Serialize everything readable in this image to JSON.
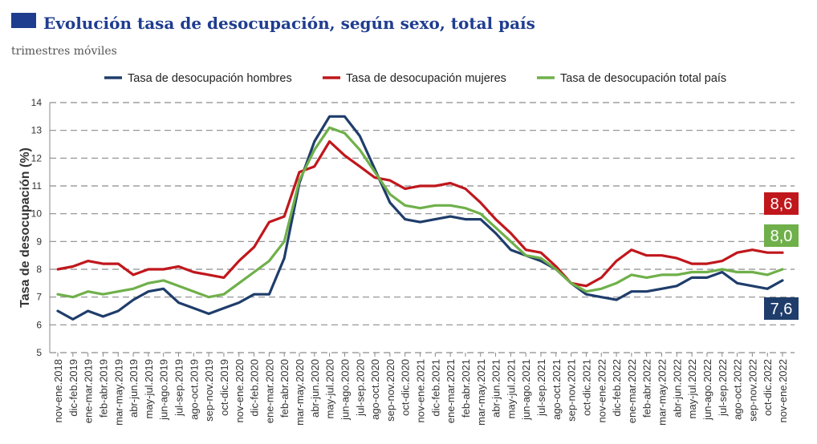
{
  "header": {
    "title": "Evolución tasa de desocupación, según sexo, total país",
    "subtitle": "trimestres móviles"
  },
  "chart_data": {
    "type": "line",
    "title": "Evolución tasa de desocupación, según sexo, total país",
    "subtitle": "trimestres móviles",
    "xlabel": "",
    "ylabel": "Tasa de desocupación (%)",
    "ylim": [
      5,
      14
    ],
    "yticks": [
      5,
      6,
      7,
      8,
      9,
      10,
      11,
      12,
      13,
      14
    ],
    "grid": true,
    "legend_position": "top",
    "categories": [
      "nov-ene.2018",
      "dic-feb.2019",
      "ene-mar.2019",
      "feb-abr.2019",
      "mar-may.2019",
      "abr-jun.2019",
      "may-jul.2019",
      "jun-ago.2019",
      "jul-sep.2019",
      "ago-oct.2019",
      "sep-nov.2019",
      "oct-dic.2019",
      "nov-ene.2020",
      "dic-feb.2020",
      "ene-mar.2020",
      "feb-abr.2020",
      "mar-may.2020",
      "abr-jun.2020",
      "may-jul.2020",
      "jun-ago.2020",
      "jul-sep.2020",
      "ago-oct.2020",
      "sep-nov.2020",
      "oct-dic.2020",
      "nov-ene.2021",
      "dic-feb.2021",
      "ene-mar.2021",
      "feb-abr.2021",
      "mar-may.2021",
      "abr-jun.2021",
      "may-jul.2021",
      "jun-ago.2021",
      "jul-sep.2021",
      "ago-oct.2021",
      "sep-nov.2021",
      "oct-dic.2021",
      "nov-ene.2022",
      "dic-feb.2022",
      "ene-mar.2022",
      "feb-abr.2022",
      "mar-may.2022",
      "abr-jun.2022",
      "may-jul.2022",
      "jun-ago.2022",
      "jul-sep.2022",
      "ago-oct.2022",
      "sep-nov.2022",
      "oct-dic.2022",
      "nov-ene.2022"
    ],
    "x_label_indices": [
      0,
      1,
      2,
      3,
      4,
      5,
      6,
      7,
      8,
      9,
      10,
      11,
      12,
      13,
      14,
      15,
      16,
      17,
      18,
      19,
      20,
      21,
      22,
      23,
      24,
      25,
      26,
      27,
      28,
      29,
      30,
      31,
      32,
      33,
      34,
      35,
      36,
      37,
      38,
      39,
      40,
      41,
      42,
      43,
      44,
      45,
      46,
      47,
      48
    ],
    "series": [
      {
        "name": "Tasa de desocupación hombres",
        "color": "#1f3d6b",
        "values": [
          6.5,
          6.2,
          6.5,
          6.3,
          6.5,
          6.9,
          7.2,
          7.3,
          6.8,
          6.6,
          6.4,
          6.6,
          6.8,
          7.1,
          7.1,
          8.4,
          11.1,
          12.6,
          13.5,
          13.5,
          12.8,
          11.6,
          10.4,
          9.8,
          9.7,
          9.8,
          9.9,
          9.8,
          9.8,
          9.3,
          8.7,
          8.5,
          8.3,
          8.0,
          7.5,
          7.1,
          7.0,
          6.9,
          7.2,
          7.2,
          7.3,
          7.4,
          7.7,
          7.7,
          7.9,
          7.5,
          7.4,
          7.3,
          7.6
        ],
        "end_label": "7,6"
      },
      {
        "name": "Tasa de desocupación mujeres",
        "color": "#c0171c",
        "values": [
          8.0,
          8.1,
          8.3,
          8.2,
          8.2,
          7.8,
          8.0,
          8.0,
          8.1,
          7.9,
          7.8,
          7.7,
          8.3,
          8.8,
          9.7,
          9.9,
          11.5,
          11.7,
          12.6,
          12.1,
          11.7,
          11.3,
          11.2,
          10.9,
          11.0,
          11.0,
          11.1,
          10.9,
          10.4,
          9.8,
          9.3,
          8.7,
          8.6,
          8.1,
          7.5,
          7.4,
          7.7,
          8.3,
          8.7,
          8.5,
          8.5,
          8.4,
          8.2,
          8.2,
          8.3,
          8.6,
          8.7,
          8.6,
          8.6
        ],
        "end_label": "8,6"
      },
      {
        "name": "Tasa de desocupación total país",
        "color": "#6fb04a",
        "values": [
          7.1,
          7.0,
          7.2,
          7.1,
          7.2,
          7.3,
          7.5,
          7.6,
          7.4,
          7.2,
          7.0,
          7.1,
          7.5,
          7.9,
          8.3,
          9.0,
          11.2,
          12.3,
          13.1,
          12.9,
          12.3,
          11.5,
          10.7,
          10.3,
          10.2,
          10.3,
          10.3,
          10.2,
          10.0,
          9.5,
          9.0,
          8.5,
          8.4,
          8.0,
          7.5,
          7.2,
          7.3,
          7.5,
          7.8,
          7.7,
          7.8,
          7.8,
          7.9,
          7.9,
          8.0,
          7.9,
          7.9,
          7.8,
          8.0
        ],
        "end_label": "8,0"
      }
    ]
  }
}
